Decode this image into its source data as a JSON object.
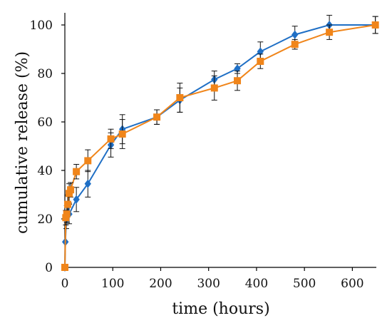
{
  "chart_data": {
    "type": "line",
    "title": "",
    "xlabel": "time (hours)",
    "ylabel": "cumulative release (%)",
    "xlim": [
      0,
      650
    ],
    "ylim": [
      0,
      100
    ],
    "xticks": [
      0,
      100,
      200,
      300,
      400,
      500,
      600
    ],
    "yticks": [
      0,
      20,
      40,
      60,
      80,
      100
    ],
    "grid": false,
    "legend": "none",
    "series": [
      {
        "marker": "diamond",
        "color": "#1f6fc5",
        "points": [
          {
            "x": 0,
            "y": 0,
            "err": 0
          },
          {
            "x": 1,
            "y": 10.5,
            "err": 0
          },
          {
            "x": 3,
            "y": 19.5,
            "err": 3.5
          },
          {
            "x": 6,
            "y": 25.5,
            "err": 4
          },
          {
            "x": 9,
            "y": 22,
            "err": 4
          },
          {
            "x": 24,
            "y": 28,
            "err": 5
          },
          {
            "x": 48,
            "y": 34.5,
            "err": 5.5
          },
          {
            "x": 96,
            "y": 50.5,
            "err": 5
          },
          {
            "x": 120,
            "y": 57,
            "err": 6
          },
          {
            "x": 192,
            "y": 62,
            "err": 3
          },
          {
            "x": 240,
            "y": 69,
            "err": 5
          },
          {
            "x": 312,
            "y": 77.5,
            "err": 3.5
          },
          {
            "x": 360,
            "y": 82,
            "err": 2
          },
          {
            "x": 408,
            "y": 89,
            "err": 4
          },
          {
            "x": 480,
            "y": 96,
            "err": 3.5
          },
          {
            "x": 552,
            "y": 100,
            "err": 4
          },
          {
            "x": 648,
            "y": 100,
            "err": 3.5
          }
        ]
      },
      {
        "marker": "square",
        "color": "#f0851a",
        "points": [
          {
            "x": 0,
            "y": 0,
            "err": 0
          },
          {
            "x": 2,
            "y": 20.5,
            "err": 3
          },
          {
            "x": 4,
            "y": 22,
            "err": 3.5
          },
          {
            "x": 6,
            "y": 26,
            "err": 4
          },
          {
            "x": 9,
            "y": 30.5,
            "err": 4
          },
          {
            "x": 12,
            "y": 32,
            "err": 3
          },
          {
            "x": 24,
            "y": 39.5,
            "err": 3
          },
          {
            "x": 48,
            "y": 44,
            "err": 4.5
          },
          {
            "x": 96,
            "y": 53,
            "err": 4
          },
          {
            "x": 120,
            "y": 55,
            "err": 6
          },
          {
            "x": 192,
            "y": 62,
            "err": 3
          },
          {
            "x": 240,
            "y": 70,
            "err": 6
          },
          {
            "x": 312,
            "y": 74,
            "err": 5
          },
          {
            "x": 360,
            "y": 77,
            "err": 4
          },
          {
            "x": 408,
            "y": 85,
            "err": 3
          },
          {
            "x": 480,
            "y": 92,
            "err": 2
          },
          {
            "x": 552,
            "y": 97,
            "err": 3
          },
          {
            "x": 648,
            "y": 100,
            "err": 3.5
          }
        ]
      }
    ]
  }
}
